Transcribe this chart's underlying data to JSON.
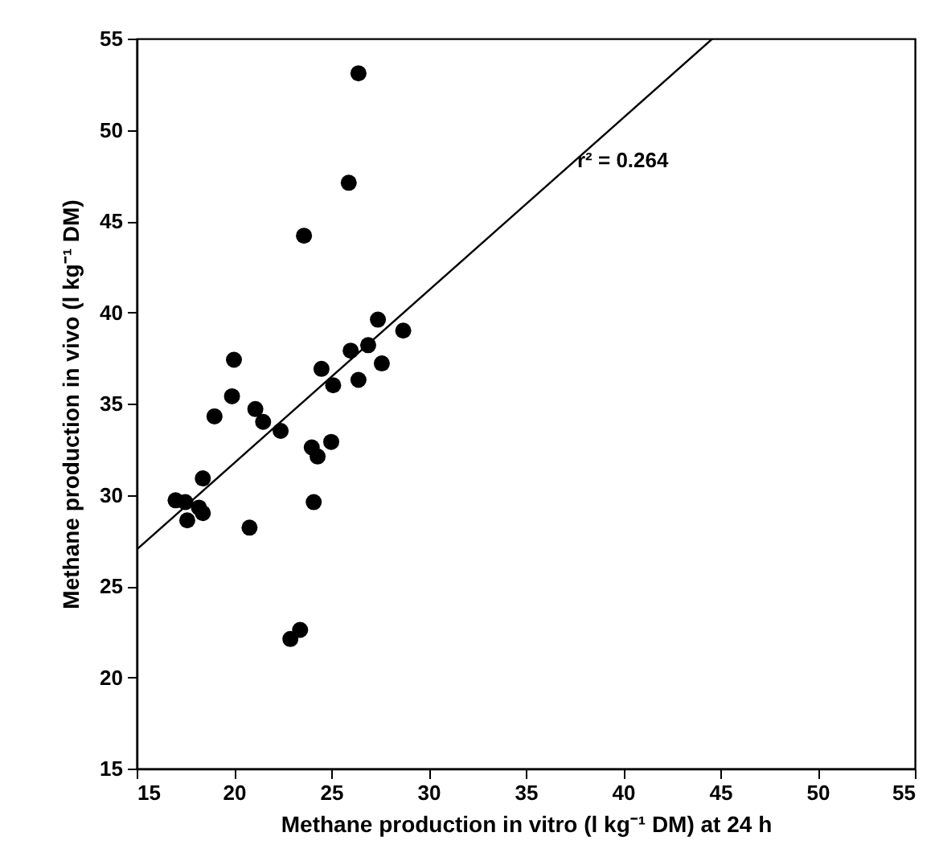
{
  "chart_data": {
    "type": "scatter",
    "xlabel": "Methane production in vitro (l kg⁻¹ DM) at 24 h",
    "ylabel": "Methane production in vivo (l kg⁻¹ DM)",
    "xlim": [
      15,
      55
    ],
    "ylim": [
      15,
      55
    ],
    "xticks": [
      15,
      20,
      25,
      30,
      35,
      40,
      45,
      50,
      55
    ],
    "yticks": [
      15,
      20,
      25,
      30,
      35,
      40,
      45,
      50,
      55
    ],
    "grid": false,
    "annotations": [
      "r² = 0.264"
    ],
    "series": [
      {
        "marker": "circle",
        "color": "#000000",
        "x": [
          17.0,
          17.5,
          17.6,
          18.2,
          18.4,
          18.4,
          19.0,
          19.9,
          20.0,
          20.8,
          21.1,
          21.5,
          22.4,
          22.9,
          23.4,
          24.0,
          24.1,
          24.3,
          24.5,
          25.0,
          25.1,
          26.0,
          26.4,
          26.9,
          27.4,
          27.6,
          28.7,
          26.4,
          25.9,
          23.6
        ],
        "values": [
          29.7,
          29.6,
          28.6,
          29.3,
          29.0,
          30.9,
          34.3,
          35.4,
          37.4,
          28.2,
          34.7,
          34.0,
          33.5,
          22.1,
          22.6,
          32.6,
          29.6,
          32.1,
          36.9,
          32.9,
          36.0,
          37.9,
          36.3,
          38.2,
          39.6,
          37.2,
          39.0,
          53.1,
          47.1,
          44.2
        ]
      },
      {
        "type": "line",
        "color": "#000000",
        "x": [
          15,
          44.6
        ],
        "values": [
          27,
          55
        ]
      }
    ]
  }
}
